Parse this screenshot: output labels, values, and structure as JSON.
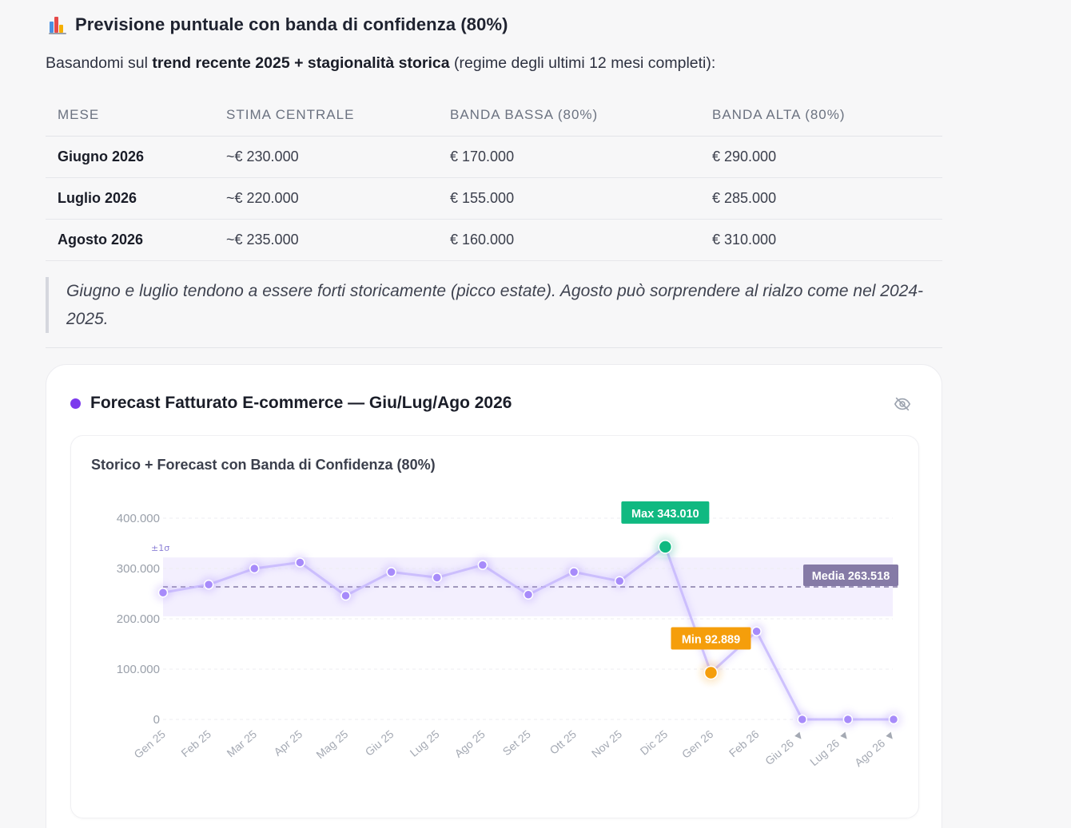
{
  "heading": {
    "icon": "bar-chart-emoji-icon",
    "title": "Previsione puntuale con banda di confidenza (80%)"
  },
  "intro": {
    "pre": "Basandomi sul ",
    "bold": "trend recente 2025 + stagionalità storica",
    "post": " (regime degli ultimi 12 mesi completi):"
  },
  "table": {
    "headers": [
      "MESE",
      "STIMA CENTRALE",
      "BANDA BASSA (80%)",
      "BANDA ALTA (80%)"
    ],
    "rows": [
      [
        "Giugno 2026",
        "~€ 230.000",
        "€ 170.000",
        "€ 290.000"
      ],
      [
        "Luglio 2026",
        "~€ 220.000",
        "€ 155.000",
        "€ 285.000"
      ],
      [
        "Agosto 2026",
        "~€ 235.000",
        "€ 160.000",
        "€ 310.000"
      ]
    ]
  },
  "quote": "Giugno e luglio tendono a essere forti storicamente (picco estate). Agosto può sorprendere al rialzo come nel 2024-2025.",
  "card": {
    "title": "Forecast Fatturato E-commerce — Giu/Lug/Ago 2026",
    "accent": "#7c3aed",
    "toggle_icon": "eye-off-icon"
  },
  "chart_data": {
    "type": "line",
    "title": "Storico + Forecast con Banda di Confidenza (80%)",
    "categories": [
      "Gen 25",
      "Feb 25",
      "Mar 25",
      "Apr 25",
      "Mag 25",
      "Giu 25",
      "Lug 25",
      "Ago 25",
      "Set 25",
      "Ott 25",
      "Nov 25",
      "Dic 25",
      "Gen 26",
      "Feb 26",
      "Giu 26 ▼",
      "Lug 26 ▼",
      "Ago 26 ▼"
    ],
    "series": [
      {
        "values": [
          252000,
          268000,
          300000,
          312000,
          246000,
          293000,
          282000,
          307000,
          248000,
          293000,
          275000,
          343010,
          92889,
          175000,
          0,
          0,
          0
        ]
      }
    ],
    "ylim": [
      0,
      400000
    ],
    "yticks": [
      "0",
      "100.000",
      "200.000",
      "300.000",
      "400.000"
    ],
    "yticks_values": [
      0,
      100000,
      200000,
      300000,
      400000
    ],
    "band": {
      "label": "±1σ",
      "low": 205000,
      "high": 322000
    },
    "mean": {
      "label": "Media 263.518",
      "value": 263518
    },
    "max": {
      "label": "Max 343.010",
      "index": 11
    },
    "min": {
      "label": "Min 92.889",
      "index": 12
    },
    "colors": {
      "line": "#c4b5fd",
      "point": "#a78bfa",
      "max": "#10b981",
      "min": "#f59e0b",
      "mean": "#857aa6",
      "band": "#f1ecfe"
    },
    "grid": true,
    "legend": "none"
  }
}
